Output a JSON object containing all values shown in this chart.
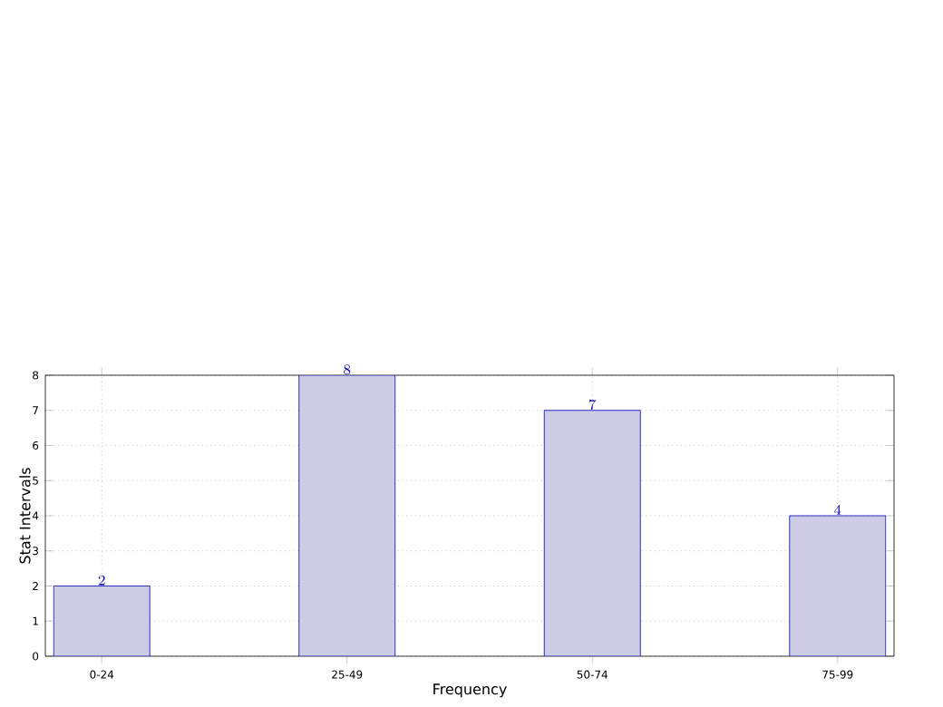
{
  "chart_data": {
    "type": "bar",
    "xlabel": "Frequency",
    "ylabel": "Stat Intervals",
    "categories": [
      "0-24",
      "25-49",
      "50-74",
      "75-99"
    ],
    "values": [
      2,
      8,
      7,
      4
    ],
    "color": "#ccccE5",
    "ylim": [
      0,
      8
    ],
    "yticks": [
      0,
      1,
      2,
      3,
      4,
      5,
      6,
      7,
      8
    ],
    "grid": true,
    "data_labels": true
  }
}
